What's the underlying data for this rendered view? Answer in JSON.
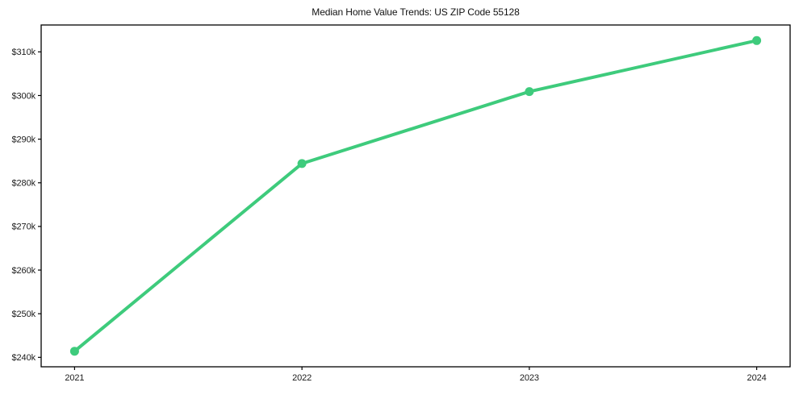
{
  "chart_data": {
    "type": "line",
    "title": "Median Home Value Trends: US ZIP Code 55128",
    "x": [
      2021,
      2022,
      2023,
      2024
    ],
    "series": [
      {
        "name": "Median Home Value",
        "values": [
          241400,
          284400,
          300900,
          312600
        ]
      }
    ],
    "xlabel": "",
    "ylabel": "",
    "xticks": [
      2021,
      2022,
      2023,
      2024
    ],
    "xtick_labels": [
      "2021",
      "2022",
      "2023",
      "2024"
    ],
    "yticks": [
      240000,
      250000,
      260000,
      270000,
      280000,
      290000,
      300000,
      310000
    ],
    "ytick_labels": [
      "$240k",
      "$250k",
      "$260k",
      "$270k",
      "$280k",
      "$290k",
      "$300k",
      "$310k"
    ],
    "xlim": [
      2020.853,
      2024.147
    ],
    "ylim": [
      237840,
      316160
    ],
    "grid": false,
    "legend": "none",
    "line_color": "#3ecb7c",
    "marker": "circle",
    "text_color": "#1a1a1a",
    "spine_color": "#000000"
  }
}
